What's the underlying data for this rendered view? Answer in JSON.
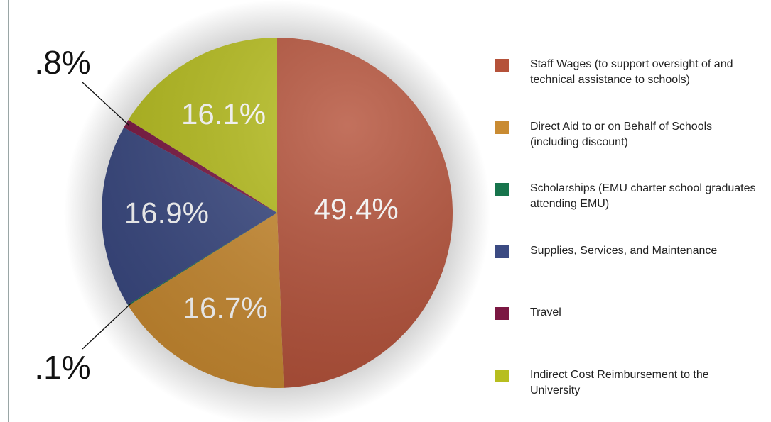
{
  "chart_data": {
    "type": "pie",
    "categories": [
      "Staff Wages (to support oversight of and technical assistance to schools)",
      "Direct Aid to or on Behalf of Schools (including discount)",
      "Scholarships (EMU charter school graduates attending EMU)",
      "Supplies, Services, and Maintenance",
      "Travel",
      "Indirect Cost Reimbursement to the University"
    ],
    "values": [
      49.4,
      16.7,
      0.1,
      16.9,
      0.8,
      16.1
    ],
    "value_labels": [
      "49.4%",
      "16.7%",
      ".1%",
      "16.9%",
      ".8%",
      "16.1%"
    ],
    "colors": [
      "#b5523a",
      "#c98b32",
      "#17744c",
      "#3b4a82",
      "#7b1842",
      "#b7be1f"
    ],
    "legend": "right"
  }
}
